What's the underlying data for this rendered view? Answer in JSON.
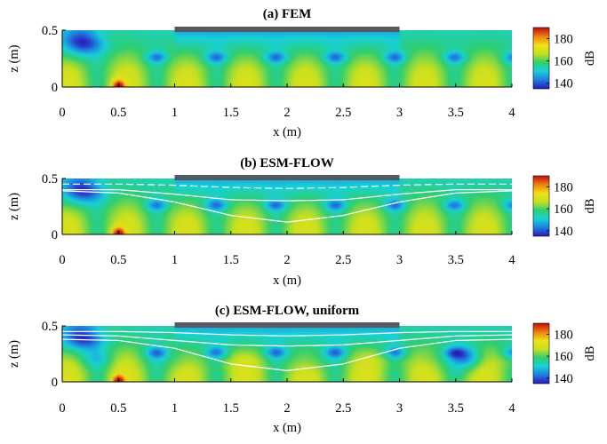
{
  "figure": {
    "colormap": [
      "#2a1bb8",
      "#1f7fe0",
      "#18d0d8",
      "#2fce70",
      "#c8e020",
      "#f0e018",
      "#f08010",
      "#c01010"
    ],
    "colorbar": {
      "label": "dB",
      "ticks": [
        140,
        160,
        180
      ],
      "range": [
        135,
        190
      ]
    },
    "panel_bar_color": "#555a60"
  },
  "chart_data": [
    {
      "type": "heatmap",
      "title": "(a) FEM",
      "xlabel": "x (m)",
      "ylabel": "z (m)",
      "xlim": [
        0,
        4
      ],
      "ylim": [
        0,
        0.5
      ],
      "xticks": [
        0,
        0.5,
        1,
        1.5,
        2,
        2.5,
        3,
        3.5,
        4
      ],
      "yticks": [
        0,
        0.5
      ],
      "value_unit": "dB",
      "value_range": [
        140,
        180
      ],
      "liner_x": [
        1,
        3
      ],
      "source": {
        "x": 0.5,
        "z": 0.03,
        "level_db": 185
      },
      "contours": []
    },
    {
      "type": "heatmap",
      "title": "(b) ESM-FLOW",
      "xlabel": "x (m)",
      "ylabel": "z (m)",
      "xlim": [
        0,
        4
      ],
      "ylim": [
        0,
        0.5
      ],
      "xticks": [
        0,
        0.5,
        1,
        1.5,
        2,
        2.5,
        3,
        3.5,
        4
      ],
      "yticks": [
        0,
        0.5
      ],
      "value_unit": "dB",
      "value_range": [
        140,
        180
      ],
      "liner_x": [
        1,
        3
      ],
      "source": {
        "x": 0.5,
        "z": 0.03,
        "level_db": 185
      },
      "contours": [
        {
          "style": "dashed",
          "x": [
            0,
            0.5,
            1,
            1.5,
            2,
            2.5,
            3,
            3.5,
            4
          ],
          "z": [
            0.45,
            0.45,
            0.44,
            0.42,
            0.41,
            0.42,
            0.44,
            0.45,
            0.45
          ]
        },
        {
          "style": "solid",
          "x": [
            0,
            0.5,
            1,
            1.5,
            2,
            2.5,
            3,
            3.5,
            4
          ],
          "z": [
            0.4,
            0.4,
            0.36,
            0.31,
            0.3,
            0.31,
            0.36,
            0.4,
            0.4
          ]
        },
        {
          "style": "solid",
          "x": [
            0,
            0.5,
            1,
            1.5,
            2,
            2.5,
            3,
            3.5,
            4
          ],
          "z": [
            0.39,
            0.37,
            0.29,
            0.17,
            0.11,
            0.17,
            0.29,
            0.37,
            0.39
          ]
        }
      ]
    },
    {
      "type": "heatmap",
      "title": "(c) ESM-FLOW, uniform",
      "xlabel": "x (m)",
      "ylabel": "z (m)",
      "xlim": [
        0,
        4
      ],
      "ylim": [
        0,
        0.5
      ],
      "xticks": [
        0,
        0.5,
        1,
        1.5,
        2,
        2.5,
        3,
        3.5,
        4
      ],
      "yticks": [
        0,
        0.5
      ],
      "value_unit": "dB",
      "value_range": [
        140,
        180
      ],
      "liner_x": [
        1,
        3
      ],
      "source": {
        "x": 0.5,
        "z": 0.03,
        "level_db": 185
      },
      "contours": [
        {
          "style": "solid",
          "x": [
            0,
            0.5,
            1,
            1.5,
            2,
            2.5,
            3,
            3.5,
            4
          ],
          "z": [
            0.45,
            0.45,
            0.44,
            0.42,
            0.41,
            0.42,
            0.44,
            0.45,
            0.45
          ]
        },
        {
          "style": "solid",
          "x": [
            0,
            0.5,
            1,
            1.5,
            2,
            2.5,
            3,
            3.5,
            4
          ],
          "z": [
            0.42,
            0.41,
            0.37,
            0.33,
            0.32,
            0.33,
            0.37,
            0.41,
            0.42
          ]
        },
        {
          "style": "solid",
          "x": [
            0,
            0.5,
            1,
            1.5,
            2,
            2.5,
            3,
            3.5,
            4
          ],
          "z": [
            0.38,
            0.37,
            0.3,
            0.16,
            0.1,
            0.16,
            0.3,
            0.37,
            0.38
          ]
        }
      ]
    }
  ]
}
